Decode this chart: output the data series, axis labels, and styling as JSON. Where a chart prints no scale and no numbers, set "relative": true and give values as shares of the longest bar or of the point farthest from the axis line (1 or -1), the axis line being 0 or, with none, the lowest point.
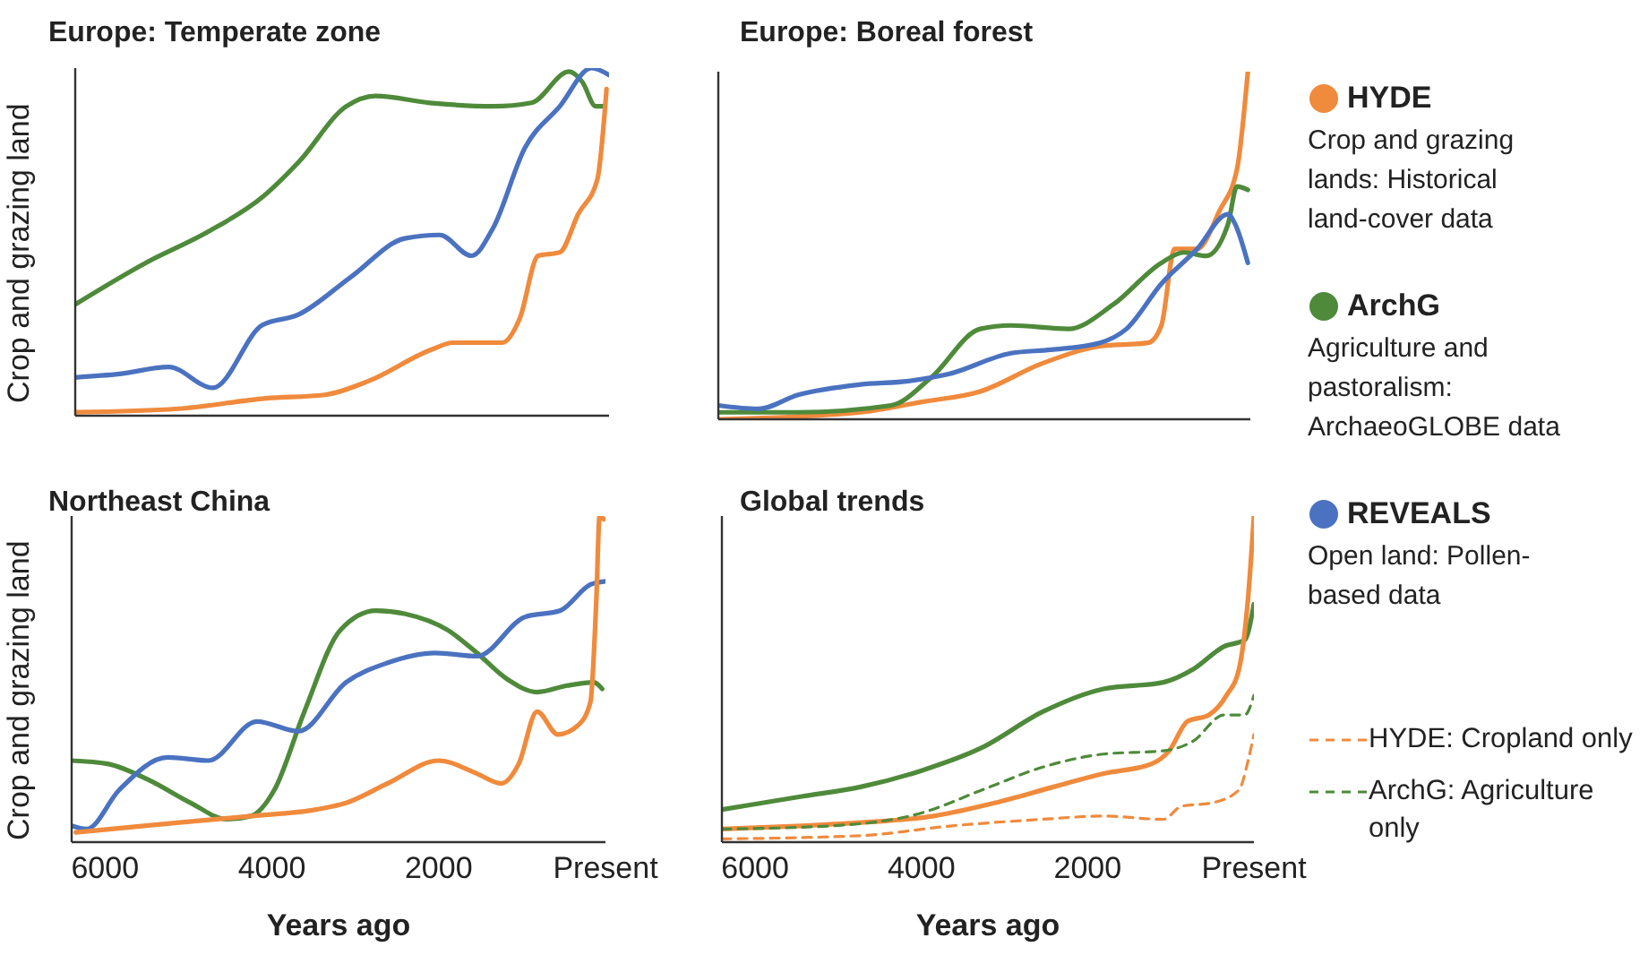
{
  "chart_data": [
    {
      "type": "line",
      "title": "Europe: Temperate zone",
      "ylabel": "Crop and grazing land",
      "relative": true,
      "xlim": [
        6400,
        0
      ],
      "tick_labels": false,
      "legend": false,
      "series": [
        {
          "color": "#4e8a3a",
          "x": [
            6400,
            5550,
            4800,
            4150,
            3720,
            3150,
            2800,
            2150,
            1390,
            930,
            480,
            320,
            160,
            50
          ],
          "values": [
            0.32,
            0.44,
            0.53,
            0.63,
            0.73,
            0.89,
            0.92,
            0.9,
            0.89,
            0.9,
            0.99,
            0.96,
            0.89,
            0.89
          ]
        },
        {
          "color": "#4a72c0",
          "x": [
            6400,
            5870,
            5280,
            4750,
            4160,
            3730,
            3090,
            2450,
            2030,
            1650,
            1390,
            1010,
            590,
            210,
            0
          ],
          "values": [
            0.11,
            0.12,
            0.14,
            0.08,
            0.26,
            0.29,
            0.4,
            0.51,
            0.52,
            0.46,
            0.54,
            0.77,
            0.89,
            1.0,
            0.98
          ]
        },
        {
          "color": "#f08a3c",
          "x": [
            6400,
            5170,
            4110,
            3410,
            2880,
            2130,
            1870,
            1280,
            1070,
            850,
            590,
            370,
            140,
            30
          ],
          "values": [
            0.01,
            0.02,
            0.05,
            0.06,
            0.1,
            0.19,
            0.21,
            0.21,
            0.28,
            0.46,
            0.47,
            0.58,
            0.68,
            0.94
          ]
        }
      ]
    },
    {
      "type": "line",
      "title": "Europe: Boreal forest",
      "relative": true,
      "xlim": [
        6400,
        0
      ],
      "tick_labels": false,
      "legend": "right",
      "annotations": [
        "Crop and grazing lands: Historical land-cover data",
        "Agriculture and pastoralism: ArchaeoGLOBE data",
        "Open land: Pollen-based data"
      ],
      "series": [
        {
          "name": "HYDE",
          "color": "#f08a3c",
          "x": [
            6400,
            4690,
            3950,
            3250,
            2510,
            1810,
            1230,
            1070,
            910,
            640,
            370,
            160,
            30
          ],
          "values": [
            0.0,
            0.02,
            0.05,
            0.08,
            0.16,
            0.21,
            0.22,
            0.27,
            0.49,
            0.49,
            0.6,
            0.72,
            1.0
          ]
        },
        {
          "name": "ArchG",
          "color": "#4e8a3a",
          "x": [
            6400,
            5440,
            4320,
            3840,
            3250,
            2880,
            2190,
            1650,
            1070,
            800,
            530,
            270,
            160,
            30
          ],
          "values": [
            0.02,
            0.02,
            0.04,
            0.12,
            0.26,
            0.27,
            0.26,
            0.33,
            0.45,
            0.48,
            0.47,
            0.56,
            0.67,
            0.66
          ]
        },
        {
          "name": "REVEALS",
          "color": "#4a72c0",
          "x": [
            6400,
            5920,
            5440,
            4690,
            4110,
            3630,
            2880,
            2400,
            1810,
            1490,
            1070,
            640,
            270,
            180,
            30
          ],
          "values": [
            0.04,
            0.03,
            0.07,
            0.1,
            0.11,
            0.13,
            0.19,
            0.2,
            0.22,
            0.26,
            0.39,
            0.49,
            0.59,
            0.56,
            0.45
          ]
        }
      ]
    },
    {
      "type": "line",
      "title": "Northeast China",
      "ylabel": "Crop and grazing land",
      "xlabel": "Years ago",
      "relative": true,
      "xlim": [
        6400,
        0
      ],
      "xticks": [
        6000,
        4000,
        2000,
        {
          "value": 0,
          "label": "Present"
        }
      ],
      "legend": false,
      "series": [
        {
          "color": "#4e8a3a",
          "x": [
            6400,
            5970,
            5470,
            4970,
            4540,
            4250,
            3970,
            3610,
            3180,
            2750,
            2400,
            1890,
            1540,
            1180,
            820,
            460,
            140,
            40
          ],
          "values": [
            0.25,
            0.24,
            0.19,
            0.12,
            0.07,
            0.08,
            0.16,
            0.4,
            0.65,
            0.71,
            0.7,
            0.65,
            0.58,
            0.5,
            0.46,
            0.48,
            0.49,
            0.47
          ]
        },
        {
          "color": "#4a72c0",
          "x": [
            6400,
            6220,
            5830,
            5250,
            4760,
            4180,
            3680,
            3110,
            2610,
            2040,
            1540,
            970,
            540,
            180,
            0
          ],
          "values": [
            0.05,
            0.04,
            0.16,
            0.26,
            0.25,
            0.37,
            0.34,
            0.49,
            0.55,
            0.58,
            0.57,
            0.69,
            0.71,
            0.79,
            0.8
          ]
        },
        {
          "color": "#f08a3c",
          "x": [
            6350,
            5110,
            4250,
            3470,
            3110,
            2610,
            2000,
            1540,
            1250,
            1040,
            820,
            570,
            320,
            180,
            110,
            70,
            20
          ],
          "values": [
            0.03,
            0.06,
            0.08,
            0.1,
            0.12,
            0.18,
            0.25,
            0.21,
            0.18,
            0.24,
            0.4,
            0.33,
            0.36,
            0.43,
            0.74,
            1.0,
            0.99
          ]
        }
      ]
    },
    {
      "type": "line",
      "title": "Global trends",
      "xlabel": "Years ago",
      "relative": true,
      "xlim": [
        6400,
        0
      ],
      "xticks": [
        6000,
        4000,
        2000,
        {
          "value": 0,
          "label": "Present"
        }
      ],
      "legend": "right",
      "series": [
        {
          "color": "#4e8a3a",
          "x": [
            6400,
            5440,
            4720,
            3990,
            3270,
            2540,
            1810,
            1090,
            730,
            360,
            110,
            0
          ],
          "values": [
            0.1,
            0.14,
            0.17,
            0.22,
            0.29,
            0.4,
            0.47,
            0.49,
            0.53,
            0.6,
            0.62,
            0.73
          ]
        },
        {
          "color": "#f08a3c",
          "x": [
            6400,
            5440,
            4720,
            3850,
            3120,
            2400,
            1810,
            1230,
            1020,
            800,
            540,
            330,
            180,
            70,
            0
          ],
          "values": [
            0.04,
            0.05,
            0.06,
            0.08,
            0.12,
            0.17,
            0.21,
            0.24,
            0.28,
            0.37,
            0.39,
            0.45,
            0.53,
            0.75,
            1.0
          ]
        },
        {
          "name": "HYDE: Cropland only",
          "color": "#f08a3c",
          "line_style": "dashed",
          "x": [
            6400,
            4720,
            3630,
            2540,
            1810,
            1090,
            870,
            510,
            180,
            70,
            0
          ],
          "values": [
            0.01,
            0.02,
            0.05,
            0.07,
            0.08,
            0.07,
            0.11,
            0.12,
            0.16,
            0.25,
            0.33
          ]
        },
        {
          "name": "ArchG: Agriculture only",
          "color": "#4e8a3a",
          "line_style": "dashed",
          "x": [
            6400,
            5080,
            3990,
            3270,
            2540,
            1810,
            1090,
            730,
            360,
            110,
            0
          ],
          "values": [
            0.04,
            0.05,
            0.09,
            0.16,
            0.23,
            0.27,
            0.28,
            0.31,
            0.39,
            0.39,
            0.45
          ]
        }
      ]
    }
  ]
}
